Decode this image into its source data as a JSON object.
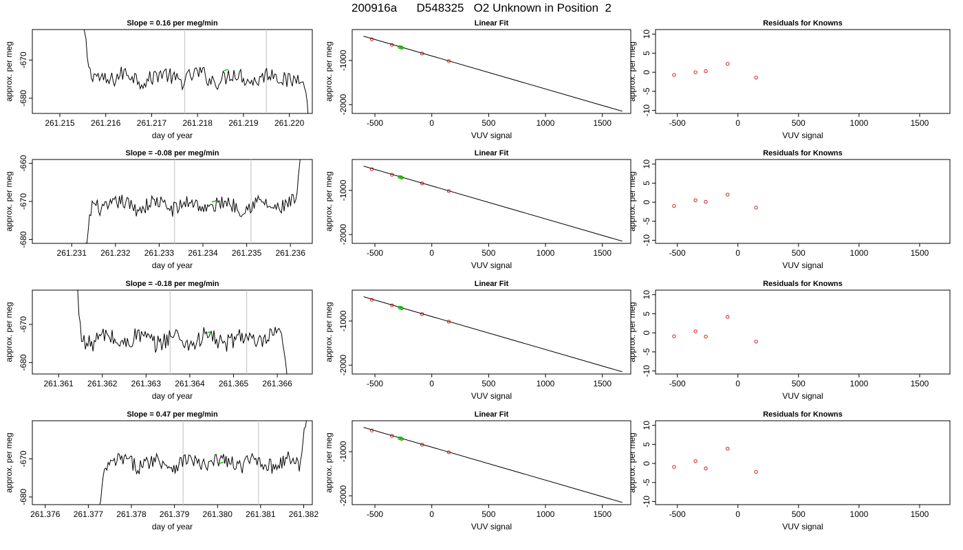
{
  "page": {
    "title": "200916a      D548325   O2 Unknown in Position  2"
  },
  "colors": {
    "trace": "#000000",
    "vline": "#c8c8c8",
    "green": "#00cc00",
    "red": "#cc0000",
    "fitline": "#000000",
    "frame": "#000000"
  },
  "chart_data": [
    {
      "type": "line",
      "panel": "timeseries-1",
      "title": "Slope =  0.16  per meg/min",
      "xlabel": "day of year",
      "ylabel": "approx. per meg",
      "xlim": [
        261.2144,
        261.2205
      ],
      "ylim": [
        -684,
        -662
      ],
      "xticks": [
        261.215,
        261.216,
        261.217,
        261.218,
        261.219,
        261.22
      ],
      "xtick_labels": [
        "261.215",
        "261.216",
        "261.217",
        "261.218",
        "261.219",
        "261.220"
      ],
      "yticks": [
        -670,
        -680
      ],
      "ytick_labels": [
        "-670",
        "-680"
      ],
      "vlines": [
        261.21772,
        261.2195
      ],
      "trace_x_range": [
        261.21545,
        261.22048
      ],
      "trace_baseline": -674.5,
      "trace_amplitude": 2.2,
      "green_point": {
        "x": 261.21862,
        "y": -672.6
      }
    },
    {
      "type": "line",
      "panel": "timeseries-2",
      "title": "Slope =  -0.08  per meg/min",
      "xlabel": "day of year",
      "ylabel": "approx. per meg",
      "xlim": [
        261.2301,
        261.2365
      ],
      "ylim": [
        -681,
        -659
      ],
      "xticks": [
        261.231,
        261.232,
        261.233,
        261.234,
        261.235,
        261.236
      ],
      "xtick_labels": [
        "261.231",
        "261.232",
        "261.233",
        "261.234",
        "261.235",
        "261.236"
      ],
      "yticks": [
        -660,
        -670,
        -680
      ],
      "ytick_labels": [
        "-660",
        "-670",
        "-680"
      ],
      "vlines": [
        261.23335,
        261.2351
      ],
      "trace_x_range": [
        261.23126,
        261.2363
      ],
      "trace_baseline": -671,
      "trace_amplitude": 2.0,
      "green_point": {
        "x": 261.23425,
        "y": -670.0
      }
    },
    {
      "type": "line",
      "panel": "timeseries-3",
      "title": "Slope =  -0.18  per meg/min",
      "xlabel": "day of year",
      "ylabel": "approx. per meg",
      "xlim": [
        261.3604,
        261.3668
      ],
      "ylim": [
        -683,
        -661
      ],
      "xticks": [
        261.361,
        261.362,
        261.363,
        261.364,
        261.365,
        261.366
      ],
      "xtick_labels": [
        "261.361",
        "261.362",
        "261.363",
        "261.364",
        "261.365",
        "261.366"
      ],
      "yticks": [
        -670,
        -680
      ],
      "ytick_labels": [
        "-670",
        "-680"
      ],
      "vlines": [
        261.36355,
        261.3653
      ],
      "trace_x_range": [
        261.36135,
        261.3663
      ],
      "trace_baseline": -674,
      "trace_amplitude": 2.4,
      "green_point": {
        "x": 261.36445,
        "y": -672.0
      }
    },
    {
      "type": "line",
      "panel": "timeseries-4",
      "title": "Slope =  0.47  per meg/min",
      "xlabel": "day of year",
      "ylabel": "approx. per meg",
      "xlim": [
        261.3757,
        261.3822
      ],
      "ylim": [
        -682,
        -660
      ],
      "xticks": [
        261.376,
        261.377,
        261.378,
        261.379,
        261.38,
        261.381,
        261.382
      ],
      "xtick_labels": [
        "261.376",
        "261.377",
        "261.378",
        "261.379",
        "261.380",
        "261.381",
        "261.382"
      ],
      "yticks": [
        -670,
        -680
      ],
      "ytick_labels": [
        "-670",
        "-680"
      ],
      "vlines": [
        261.3792,
        261.38095
      ],
      "trace_x_range": [
        261.3772,
        261.3821
      ],
      "trace_baseline": -671,
      "trace_amplitude": 2.0,
      "green_point": {
        "x": 261.3801,
        "y": -671.0
      }
    },
    {
      "type": "scatter",
      "panel": "linear-fit-1",
      "title": "Linear Fit",
      "xlabel": "VUV signal",
      "ylabel": "approx. per meg",
      "xlim": [
        -700,
        1750
      ],
      "ylim": [
        -2200,
        -300
      ],
      "xticks": [
        -500,
        0,
        500,
        1000,
        1500
      ],
      "xtick_labels": [
        "-500",
        "0",
        "500",
        "1000",
        "1500"
      ],
      "yticks": [
        -1000,
        -2000
      ],
      "ytick_labels": [
        "-1000",
        "-2000"
      ],
      "fit_line": [
        [
          -600,
          -450
        ],
        [
          1675,
          -2150
        ]
      ],
      "known_points": [
        [
          -527,
          -520
        ],
        [
          -350,
          -645
        ],
        [
          -265,
          -710
        ],
        [
          -85,
          -842
        ],
        [
          150,
          -1015
        ]
      ],
      "unknown_points": [
        [
          -285,
          -695
        ],
        [
          -275,
          -700
        ],
        [
          -268,
          -705
        ]
      ]
    },
    {
      "type": "scatter",
      "panel": "linear-fit-2",
      "title": "Linear Fit",
      "xlabel": "VUV signal",
      "ylabel": "approx. per meg",
      "xlim": [
        -700,
        1750
      ],
      "ylim": [
        -2200,
        -300
      ],
      "xticks": [
        -500,
        0,
        500,
        1000,
        1500
      ],
      "xtick_labels": [
        "-500",
        "0",
        "500",
        "1000",
        "1500"
      ],
      "yticks": [
        -1000,
        -2000
      ],
      "ytick_labels": [
        "-1000",
        "-2000"
      ],
      "fit_line": [
        [
          -600,
          -450
        ],
        [
          1675,
          -2150
        ]
      ],
      "known_points": [
        [
          -527,
          -520
        ],
        [
          -350,
          -645
        ],
        [
          -265,
          -710
        ],
        [
          -85,
          -842
        ],
        [
          150,
          -1015
        ]
      ],
      "unknown_points": [
        [
          -285,
          -695
        ],
        [
          -275,
          -700
        ],
        [
          -268,
          -705
        ]
      ]
    },
    {
      "type": "scatter",
      "panel": "linear-fit-3",
      "title": "Linear Fit",
      "xlabel": "VUV signal",
      "ylabel": "approx. per meg",
      "xlim": [
        -700,
        1750
      ],
      "ylim": [
        -2200,
        -300
      ],
      "xticks": [
        -500,
        0,
        500,
        1000,
        1500
      ],
      "xtick_labels": [
        "-500",
        "0",
        "500",
        "1000",
        "1500"
      ],
      "yticks": [
        -1000,
        -2000
      ],
      "ytick_labels": [
        "-1000",
        "-2000"
      ],
      "fit_line": [
        [
          -600,
          -450
        ],
        [
          1675,
          -2150
        ]
      ],
      "known_points": [
        [
          -527,
          -520
        ],
        [
          -350,
          -645
        ],
        [
          -265,
          -710
        ],
        [
          -85,
          -842
        ],
        [
          150,
          -1015
        ]
      ],
      "unknown_points": [
        [
          -285,
          -695
        ],
        [
          -275,
          -700
        ],
        [
          -268,
          -705
        ]
      ]
    },
    {
      "type": "scatter",
      "panel": "linear-fit-4",
      "title": "Linear Fit",
      "xlabel": "VUV signal",
      "ylabel": "approx. per meg",
      "xlim": [
        -700,
        1750
      ],
      "ylim": [
        -2200,
        -300
      ],
      "xticks": [
        -500,
        0,
        500,
        1000,
        1500
      ],
      "xtick_labels": [
        "-500",
        "0",
        "500",
        "1000",
        "1500"
      ],
      "yticks": [
        -1000,
        -2000
      ],
      "ytick_labels": [
        "-1000",
        "-2000"
      ],
      "fit_line": [
        [
          -600,
          -450
        ],
        [
          1675,
          -2150
        ]
      ],
      "known_points": [
        [
          -527,
          -520
        ],
        [
          -350,
          -645
        ],
        [
          -265,
          -710
        ],
        [
          -85,
          -842
        ],
        [
          150,
          -1015
        ]
      ],
      "unknown_points": [
        [
          -285,
          -695
        ],
        [
          -275,
          -700
        ],
        [
          -268,
          -705
        ]
      ]
    },
    {
      "type": "scatter",
      "panel": "residuals-1",
      "title": "Residuals for Knowns",
      "xlabel": "VUV signal",
      "ylabel": "approx. per meg",
      "xlim": [
        -680,
        1750
      ],
      "ylim": [
        -10.8,
        11.2
      ],
      "xticks": [
        -500,
        0,
        500,
        1000,
        1500
      ],
      "xtick_labels": [
        "-500",
        "0",
        "500",
        "1000",
        "1500"
      ],
      "yticks": [
        10,
        5,
        0,
        -5,
        -10
      ],
      "ytick_labels": [
        "10",
        "5",
        "0",
        "-5",
        "-10"
      ],
      "points": [
        [
          -527,
          -0.7
        ],
        [
          -350,
          0.0
        ],
        [
          -265,
          0.3
        ],
        [
          -85,
          2.2
        ],
        [
          150,
          -1.4
        ]
      ]
    },
    {
      "type": "scatter",
      "panel": "residuals-2",
      "title": "Residuals for Knowns",
      "xlabel": "VUV signal",
      "ylabel": "approx. per meg",
      "xlim": [
        -680,
        1750
      ],
      "ylim": [
        -10.8,
        11.2
      ],
      "xticks": [
        -500,
        0,
        500,
        1000,
        1500
      ],
      "xtick_labels": [
        "-500",
        "0",
        "500",
        "1000",
        "1500"
      ],
      "yticks": [
        10,
        5,
        0,
        -5,
        -10
      ],
      "ytick_labels": [
        "10",
        "5",
        "0",
        "-5",
        "-10"
      ],
      "points": [
        [
          -527,
          -1.0
        ],
        [
          -350,
          0.5
        ],
        [
          -265,
          0.1
        ],
        [
          -85,
          2.0
        ],
        [
          150,
          -1.4
        ]
      ]
    },
    {
      "type": "scatter",
      "panel": "residuals-3",
      "title": "Residuals for Knowns",
      "xlabel": "VUV signal",
      "ylabel": "approx. per meg",
      "xlim": [
        -680,
        1750
      ],
      "ylim": [
        -10.8,
        11.2
      ],
      "xticks": [
        -500,
        0,
        500,
        1000,
        1500
      ],
      "xtick_labels": [
        "-500",
        "0",
        "500",
        "1000",
        "1500"
      ],
      "yticks": [
        10,
        5,
        0,
        -5,
        -10
      ],
      "ytick_labels": [
        "10",
        "5",
        "0",
        "-5",
        "-10"
      ],
      "points": [
        [
          -527,
          -0.9
        ],
        [
          -350,
          0.4
        ],
        [
          -265,
          -1.0
        ],
        [
          -85,
          4.2
        ],
        [
          150,
          -2.3
        ]
      ]
    },
    {
      "type": "scatter",
      "panel": "residuals-4",
      "title": "Residuals for Knowns",
      "xlabel": "VUV signal",
      "ylabel": "approx. per meg",
      "xlim": [
        -680,
        1750
      ],
      "ylim": [
        -10.8,
        11.2
      ],
      "xticks": [
        -500,
        0,
        500,
        1000,
        1500
      ],
      "xtick_labels": [
        "-500",
        "0",
        "500",
        "1000",
        "1500"
      ],
      "yticks": [
        10,
        5,
        0,
        -5,
        -10
      ],
      "ytick_labels": [
        "10",
        "5",
        "0",
        "-5",
        "-10"
      ],
      "points": [
        [
          -527,
          -0.9
        ],
        [
          -350,
          0.6
        ],
        [
          -265,
          -1.3
        ],
        [
          -85,
          3.9
        ],
        [
          150,
          -2.2
        ]
      ]
    }
  ]
}
